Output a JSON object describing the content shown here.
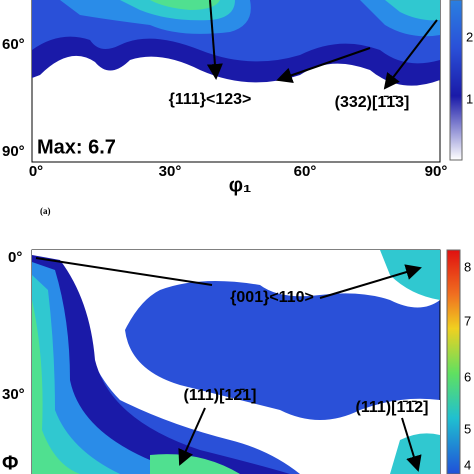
{
  "panel_a": {
    "y_ticks": [
      "60°",
      "90°"
    ],
    "x_ticks": [
      "0°",
      "30°",
      "60°",
      "90°"
    ],
    "x_label": "φ₁",
    "max_label": "Max: 6.7",
    "annotations": [
      "{111}<123>",
      "(332)[1̄1̄3]"
    ],
    "colorbar_labels": [
      "2",
      "1"
    ],
    "caption": "(a)"
  },
  "panel_b": {
    "y_ticks": [
      "0°",
      "30°"
    ],
    "y_label": "Φ",
    "annotations": [
      "{001}<110>",
      "(111)[12̄1]",
      "(111)[1̄1̄2]"
    ],
    "colorbar_labels": [
      "8",
      "7",
      "6",
      "5",
      "4"
    ]
  }
}
